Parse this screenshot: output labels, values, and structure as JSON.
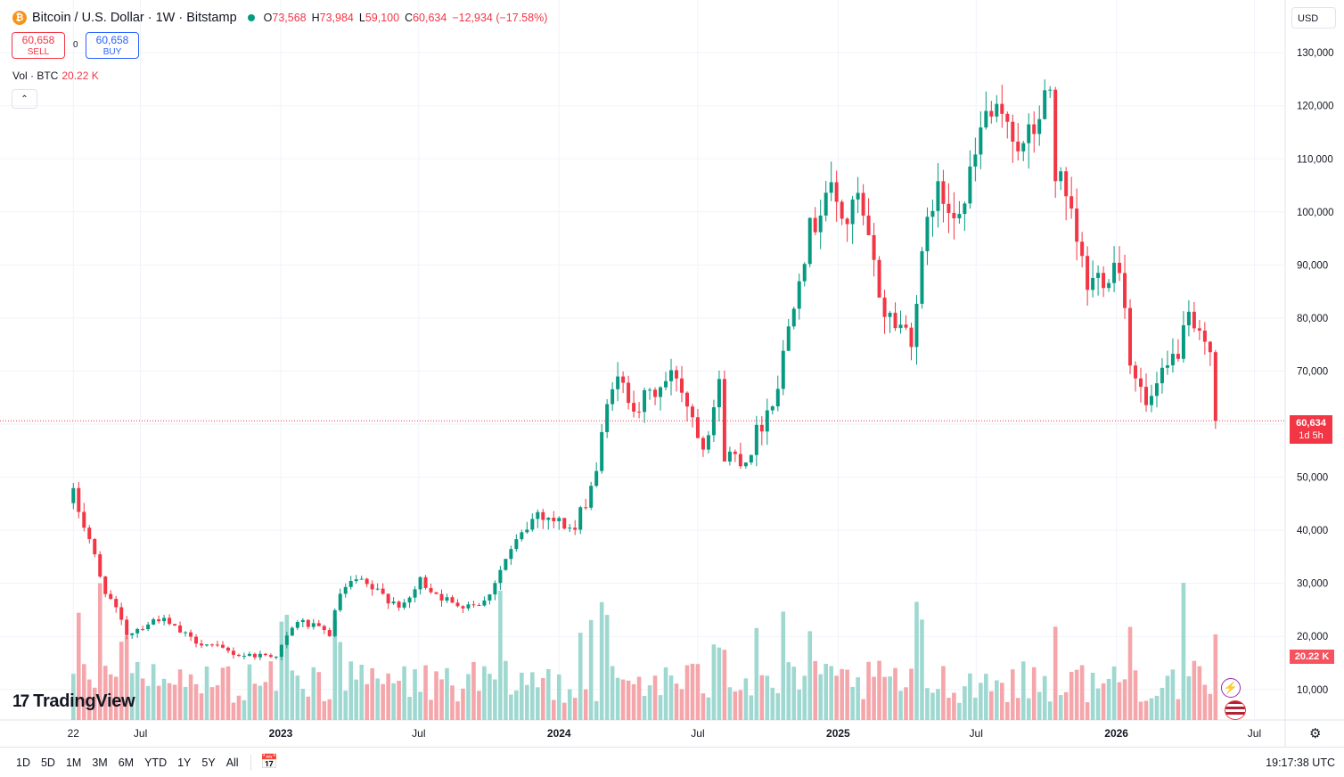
{
  "header": {
    "coin_glyph": "₿",
    "symbol": "Bitcoin / U.S. Dollar · 1W · Bitstamp",
    "open_label": "O",
    "open": "73,568",
    "high_label": "H",
    "high": "73,984",
    "low_label": "L",
    "low": "59,100",
    "close_label": "C",
    "close": "60,634",
    "change": "−12,934 (−17.58%)"
  },
  "trade": {
    "sell_price": "60,658",
    "sell_label": "SELL",
    "spread": "0",
    "buy_price": "60,658",
    "buy_label": "BUY"
  },
  "volume_legend": {
    "label": "Vol · BTC",
    "value": "20.22 K"
  },
  "collapse_glyph": "⌃",
  "currency": "USD",
  "price_tag": {
    "value": "60,634",
    "countdown": "1d 5h"
  },
  "volume_tag": "20.22 K",
  "logo": {
    "mark": "17",
    "text": "TradingView"
  },
  "bottom": {
    "ranges": [
      "1D",
      "5D",
      "1M",
      "3M",
      "6M",
      "YTD",
      "1Y",
      "5Y",
      "All"
    ],
    "calendar_icon": "📅",
    "clock": "19:17:38 UTC"
  },
  "gear_glyph": "⚙",
  "colors": {
    "up": "#089981",
    "down": "#f23645",
    "vol_up": "#9fd8d0",
    "vol_down": "#f4a6ab"
  },
  "chart_data": {
    "type": "candlestick",
    "interval": "1W",
    "currency": "USD",
    "last_price": 60634,
    "y_ticks": [
      10000,
      20000,
      30000,
      40000,
      50000,
      60000,
      70000,
      80000,
      90000,
      100000,
      110000,
      120000,
      130000
    ],
    "y_tick_labels": [
      "10,000",
      "20,000",
      "30,000",
      "40,000",
      "50,000",
      "60,000",
      "70,000",
      "80,000",
      "90,000",
      "100,000",
      "110,000",
      "120,000",
      "130,000"
    ],
    "x_labels": [
      {
        "label": "22",
        "date": "2022-04-04"
      },
      {
        "label": "Jul",
        "date": "2022-07-01"
      },
      {
        "label": "2023",
        "date": "2023-01-01"
      },
      {
        "label": "Jul",
        "date": "2023-07-01"
      },
      {
        "label": "2024",
        "date": "2024-01-01"
      },
      {
        "label": "Jul",
        "date": "2024-07-01"
      },
      {
        "label": "2025",
        "date": "2025-01-01"
      },
      {
        "label": "Jul",
        "date": "2025-07-01"
      },
      {
        "label": "2026",
        "date": "2026-01-01"
      },
      {
        "label": "Jul",
        "date": "2026-07-01"
      }
    ],
    "close_anchors": [
      [
        "2022-04-04",
        46500
      ],
      [
        "2022-04-25",
        38500
      ],
      [
        "2022-05-09",
        31000
      ],
      [
        "2022-06-13",
        20500
      ],
      [
        "2022-07-25",
        23500
      ],
      [
        "2022-09-05",
        19500
      ],
      [
        "2022-11-07",
        16500
      ],
      [
        "2022-12-26",
        16500
      ],
      [
        "2023-01-23",
        23000
      ],
      [
        "2023-03-06",
        20500
      ],
      [
        "2023-03-20",
        28000
      ],
      [
        "2023-04-10",
        30500
      ],
      [
        "2023-06-12",
        25500
      ],
      [
        "2023-07-03",
        30500
      ],
      [
        "2023-08-14",
        26000
      ],
      [
        "2023-09-25",
        26500
      ],
      [
        "2023-10-23",
        34500
      ],
      [
        "2023-12-04",
        43500
      ],
      [
        "2024-01-22",
        40000
      ],
      [
        "2024-02-19",
        51500
      ],
      [
        "2024-03-11",
        68500
      ],
      [
        "2024-04-15",
        63500
      ],
      [
        "2024-06-03",
        69500
      ],
      [
        "2024-07-08",
        56500
      ],
      [
        "2024-07-29",
        67000
      ],
      [
        "2024-08-05",
        54500
      ],
      [
        "2024-09-02",
        53500
      ],
      [
        "2024-10-14",
        67500
      ],
      [
        "2024-11-11",
        90000
      ],
      [
        "2024-12-16",
        104500
      ],
      [
        "2025-01-13",
        98000
      ],
      [
        "2025-01-27",
        102000
      ],
      [
        "2025-03-03",
        81000
      ],
      [
        "2025-04-07",
        77000
      ],
      [
        "2025-05-05",
        103000
      ],
      [
        "2025-06-16",
        101500
      ],
      [
        "2025-07-14",
        119000
      ],
      [
        "2025-08-04",
        115500
      ],
      [
        "2025-08-11",
        118000
      ],
      [
        "2025-09-01",
        111000
      ],
      [
        "2025-10-06",
        123000
      ],
      [
        "2025-10-13",
        108000
      ],
      [
        "2025-11-10",
        94000
      ],
      [
        "2025-11-24",
        86000
      ],
      [
        "2026-01-05",
        91000
      ],
      [
        "2026-01-19",
        73000
      ],
      [
        "2026-02-09",
        63000
      ],
      [
        "2026-03-09",
        70000
      ],
      [
        "2026-04-06",
        78500
      ],
      [
        "2026-04-27",
        74000
      ],
      [
        "2026-05-04",
        73568
      ],
      [
        "2026-05-11",
        60634
      ]
    ],
    "volume_scale_max": 40000,
    "last_volume": 20220
  }
}
